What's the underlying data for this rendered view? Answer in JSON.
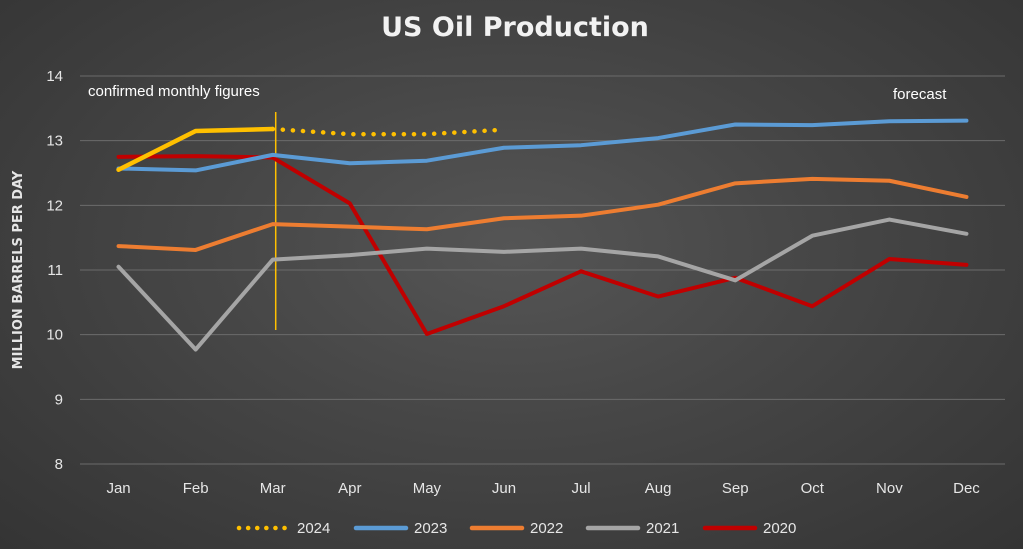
{
  "chart_data": {
    "type": "line",
    "title": "US Oil Production",
    "ylabel": "MILLION BARRELS PER DAY",
    "xlabel": "",
    "categories": [
      "Jan",
      "Feb",
      "Mar",
      "Apr",
      "May",
      "Jun",
      "Jul",
      "Aug",
      "Sep",
      "Oct",
      "Nov",
      "Dec"
    ],
    "ylim": [
      8,
      14
    ],
    "yticks": [
      "8",
      "9",
      "10",
      "11",
      "12",
      "13",
      "14"
    ],
    "grid": "horizontal",
    "legend_position": "bottom",
    "annotations": {
      "left": "confirmed monthly figures",
      "right": "forecast"
    },
    "marker_category": "Mar",
    "series": [
      {
        "name": "2024",
        "color": "#ffc000",
        "style": "solid-then-dotted",
        "dotted_from_index": 2,
        "legend_style": "dotted",
        "values": [
          12.55,
          13.15,
          13.18,
          13.1,
          13.1,
          13.17,
          null,
          null,
          null,
          null,
          null,
          null
        ]
      },
      {
        "name": "2023",
        "color": "#5b9bd5",
        "style": "solid",
        "values": [
          12.57,
          12.54,
          12.78,
          12.65,
          12.69,
          12.89,
          12.93,
          13.04,
          13.25,
          13.24,
          13.3,
          13.31
        ]
      },
      {
        "name": "2022",
        "color": "#ed7d31",
        "style": "solid",
        "values": [
          11.37,
          11.31,
          11.71,
          11.67,
          11.63,
          11.8,
          11.84,
          12.01,
          12.34,
          12.41,
          12.38,
          12.13
        ]
      },
      {
        "name": "2021",
        "color": "#a5a5a5",
        "style": "solid",
        "values": [
          11.05,
          9.77,
          11.16,
          11.23,
          11.33,
          11.28,
          11.33,
          11.21,
          10.84,
          11.53,
          11.78,
          11.56
        ]
      },
      {
        "name": "2020",
        "color": "#c00000",
        "style": "solid",
        "values": [
          12.75,
          12.76,
          12.74,
          12.03,
          10.01,
          10.44,
          10.98,
          10.59,
          10.88,
          10.44,
          11.17,
          11.08
        ]
      }
    ]
  }
}
